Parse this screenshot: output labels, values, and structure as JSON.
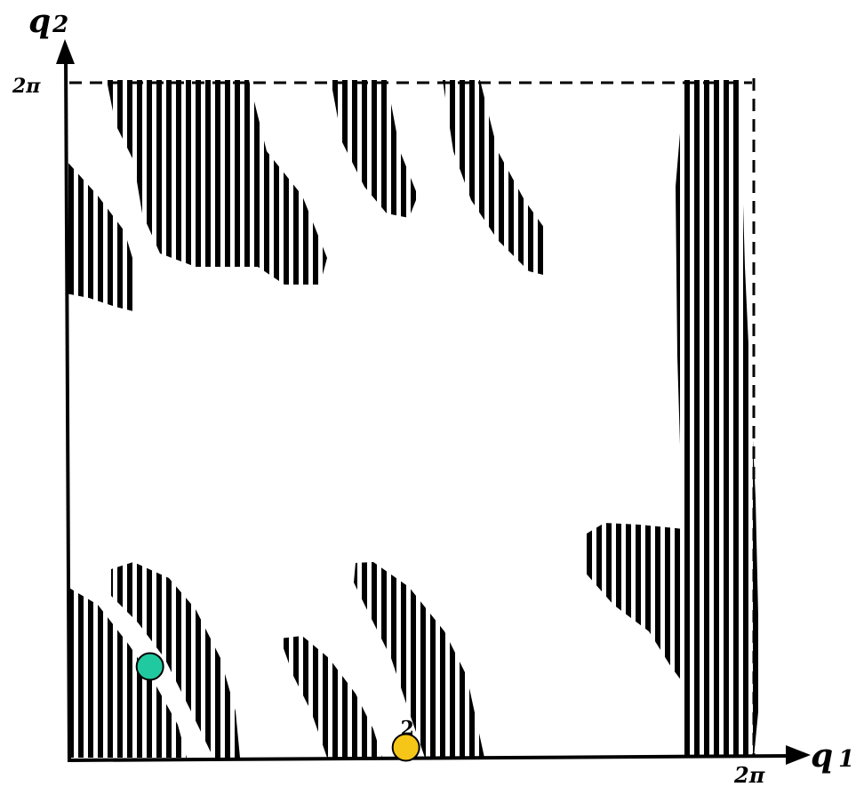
{
  "axes": {
    "y": {
      "symbol": "q",
      "subscript": "2",
      "top_tick": "2π"
    },
    "x": {
      "symbol": "q",
      "subscript": "1",
      "right_tick": "2π"
    }
  },
  "points": [
    {
      "label": "",
      "color": "#21c9a0",
      "q1": 0.74,
      "q2": 0.87
    },
    {
      "label": "2",
      "color": "#f5c518",
      "q1": 3.09,
      "q2": 0.12
    }
  ],
  "colors": {
    "ink": "#000000",
    "background": "#ffffff"
  }
}
